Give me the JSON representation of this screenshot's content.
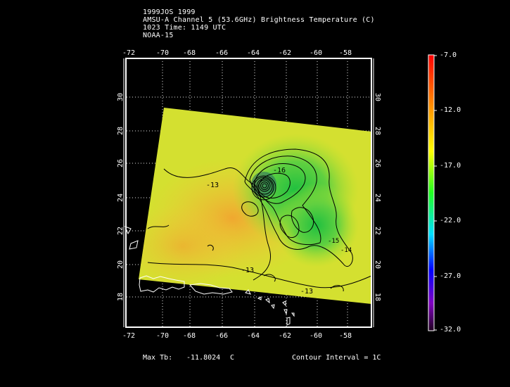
{
  "header": {
    "line1": "1999JOS 1999",
    "line2": "AMSU-A Channel 5 (53.6GHz) Brightness Temperature (C)",
    "line3": "1023 Time: 1149 UTC",
    "line4": "NOAA-15"
  },
  "axes": {
    "lon_ticks": [
      "-72",
      "-70",
      "-68",
      "-66",
      "-64",
      "-62",
      "-60",
      "-58"
    ],
    "lat_ticks": [
      "18",
      "20",
      "22",
      "24",
      "26",
      "28",
      "30"
    ]
  },
  "contour_labels": [
    "-13",
    "-13",
    "-13",
    "-16",
    "-15",
    "-14"
  ],
  "colorbar": {
    "labels": [
      "-7.0",
      "-12.0",
      "-17.0",
      "-22.0",
      "-27.0",
      "-32.0"
    ],
    "colors": [
      "#ff0000",
      "#ff8c00",
      "#ffff00",
      "#00ff00",
      "#00e5ff",
      "#0000ff",
      "#8b00ff",
      "#1a001a"
    ]
  },
  "footer": {
    "max_label": "Max Tb:",
    "max_value": "-11.8024",
    "max_unit": "C",
    "interval": "Contour Interval = 1C"
  }
}
